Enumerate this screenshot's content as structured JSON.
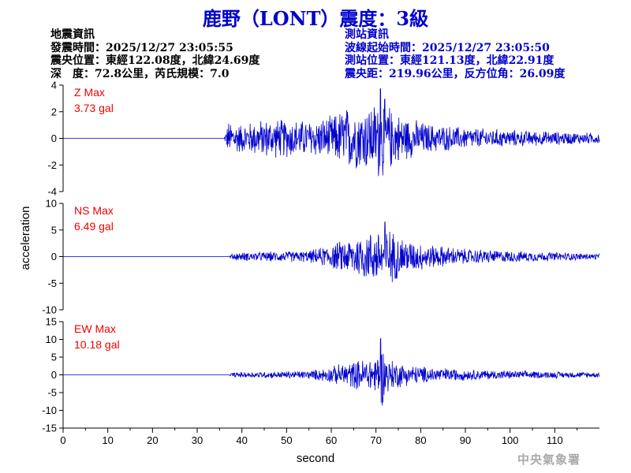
{
  "title": "鹿野（LONT）震度：3級",
  "event_info": {
    "heading": "地震資訊",
    "origin_time": "發震時間：2025/12/27 23:05:55",
    "epicenter": "震央位置：東經122.08度，北緯24.69度",
    "depth_magnitude": "深　度：72.8公里，芮氏規模：7.0"
  },
  "station_info": {
    "heading": "測站資訊",
    "wave_start": "波線起始時間：2025/12/27 23:05:50",
    "location": "測站位置：東經121.13度，北緯22.91度",
    "distance": "震央距：219.96公里，反方位角：26.09度"
  },
  "agency": "中央氣象署",
  "colors": {
    "trace": "#0000cc",
    "max_label": "#ee0000",
    "title": "#0000cc"
  },
  "chart_data": {
    "type": "line",
    "xlabel": "second",
    "ylabel": "acceleration",
    "xlim": [
      0,
      120
    ],
    "x_ticks": [
      0,
      10,
      20,
      30,
      40,
      50,
      60,
      70,
      80,
      90,
      100,
      110
    ],
    "grid": false,
    "series": [
      {
        "name": "Z",
        "max_label": "Z Max",
        "max_value": "3.73 gal",
        "peak": 3.73,
        "ylim": [
          -4,
          4
        ],
        "y_ticks": [
          -4,
          -2,
          0,
          2,
          4
        ],
        "envelope": [
          [
            0,
            0.0
          ],
          [
            36,
            0.0
          ],
          [
            37,
            1.4
          ],
          [
            40,
            1.2
          ],
          [
            45,
            1.6
          ],
          [
            50,
            1.6
          ],
          [
            55,
            1.5
          ],
          [
            60,
            1.8
          ],
          [
            63,
            2.6
          ],
          [
            66,
            2.5
          ],
          [
            70,
            3.0
          ],
          [
            71,
            3.73
          ],
          [
            74,
            2.2
          ],
          [
            78,
            1.6
          ],
          [
            82,
            1.2
          ],
          [
            90,
            0.9
          ],
          [
            100,
            0.7
          ],
          [
            110,
            0.55
          ],
          [
            120,
            0.45
          ]
        ]
      },
      {
        "name": "NS",
        "max_label": "NS Max",
        "max_value": "6.49 gal",
        "peak": 6.49,
        "ylim": [
          -10,
          10
        ],
        "y_ticks": [
          -10,
          -5,
          0,
          5,
          10
        ],
        "envelope": [
          [
            0,
            0.0
          ],
          [
            37,
            0.0
          ],
          [
            38,
            0.8
          ],
          [
            45,
            1.0
          ],
          [
            55,
            1.2
          ],
          [
            60,
            2.5
          ],
          [
            63,
            3.5
          ],
          [
            66,
            4.5
          ],
          [
            70,
            5.5
          ],
          [
            72,
            6.49
          ],
          [
            74,
            5.0
          ],
          [
            78,
            3.2
          ],
          [
            82,
            2.5
          ],
          [
            90,
            1.6
          ],
          [
            100,
            1.2
          ],
          [
            110,
            0.9
          ],
          [
            120,
            0.6
          ]
        ]
      },
      {
        "name": "EW",
        "max_label": "EW Max",
        "max_value": "10.18 gal",
        "peak": 10.18,
        "ylim": [
          -15,
          15
        ],
        "y_ticks": [
          -15,
          -10,
          -5,
          0,
          5,
          10,
          15
        ],
        "envelope": [
          [
            0,
            0.0
          ],
          [
            37,
            0.0
          ],
          [
            38,
            0.8
          ],
          [
            45,
            1.0
          ],
          [
            55,
            1.3
          ],
          [
            60,
            2.5
          ],
          [
            63,
            3.8
          ],
          [
            66,
            4.5
          ],
          [
            70,
            6.0
          ],
          [
            71,
            10.18
          ],
          [
            73,
            5.0
          ],
          [
            77,
            3.2
          ],
          [
            82,
            2.4
          ],
          [
            90,
            1.7
          ],
          [
            100,
            1.3
          ],
          [
            110,
            1.0
          ],
          [
            120,
            0.8
          ]
        ]
      }
    ]
  }
}
